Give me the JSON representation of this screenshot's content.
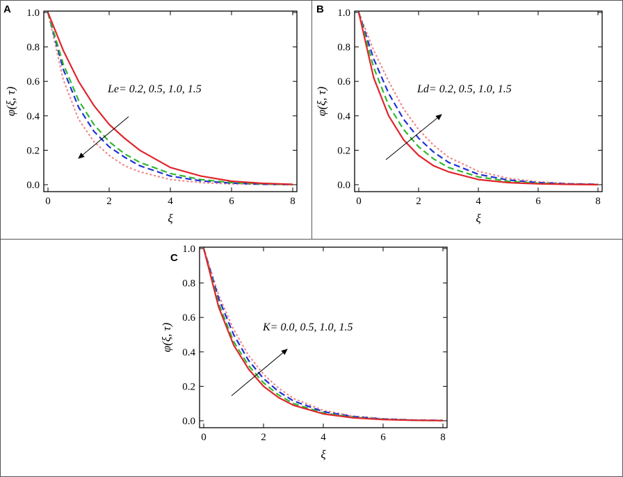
{
  "panels": [
    {
      "letter": "A"
    },
    {
      "letter": "B"
    },
    {
      "letter": "C"
    }
  ],
  "chart_data": [
    {
      "type": "line",
      "panel": "A",
      "xlabel": "ξ",
      "ylabel": "φ(ξ, τ)",
      "xlim": [
        0,
        8
      ],
      "ylim": [
        0,
        1
      ],
      "xticks": [
        "0",
        "2",
        "4",
        "6",
        "8"
      ],
      "yticks": [
        "0.0",
        "0.2",
        "0.4",
        "0.6",
        "0.8",
        "1.0"
      ],
      "annotation": "Le= 0.2, 0.5, 1.0, 1.5",
      "arrow_direction": "down-left",
      "series": [
        {
          "color": "#e0242b",
          "style": "solid",
          "x": [
            0,
            0.5,
            1,
            1.5,
            2,
            2.5,
            3,
            4,
            5,
            6,
            7,
            8
          ],
          "y": [
            1.0,
            0.78,
            0.6,
            0.46,
            0.35,
            0.27,
            0.2,
            0.1,
            0.05,
            0.02,
            0.008,
            0.002
          ]
        },
        {
          "color": "#2eb82e",
          "style": "dashed",
          "x": [
            0,
            0.5,
            1,
            1.5,
            2,
            2.5,
            3,
            4,
            5,
            6,
            7,
            8
          ],
          "y": [
            1.0,
            0.7,
            0.49,
            0.35,
            0.25,
            0.18,
            0.13,
            0.065,
            0.03,
            0.012,
            0.005,
            0.001
          ]
        },
        {
          "color": "#1f2fd6",
          "style": "dashed",
          "x": [
            0,
            0.5,
            1,
            1.5,
            2,
            2.5,
            3,
            4,
            5,
            6,
            7,
            8
          ],
          "y": [
            1.0,
            0.67,
            0.45,
            0.31,
            0.22,
            0.16,
            0.11,
            0.05,
            0.022,
            0.009,
            0.003,
            0.001
          ]
        },
        {
          "color": "#f08a8a",
          "style": "dotted",
          "x": [
            0,
            0.5,
            1,
            1.5,
            2,
            2.5,
            3,
            4,
            5,
            6,
            7,
            8
          ],
          "y": [
            1.0,
            0.61,
            0.38,
            0.25,
            0.17,
            0.11,
            0.075,
            0.03,
            0.012,
            0.005,
            0.002,
            0.0
          ]
        }
      ]
    },
    {
      "type": "line",
      "panel": "B",
      "xlabel": "ξ",
      "ylabel": "φ(ξ, τ)",
      "xlim": [
        0,
        8
      ],
      "ylim": [
        0,
        1
      ],
      "xticks": [
        "0",
        "2",
        "4",
        "6",
        "8"
      ],
      "yticks": [
        "0.0",
        "0.2",
        "0.4",
        "0.6",
        "0.8",
        "1.0"
      ],
      "annotation": "Ld= 0.2, 0.5, 1.0, 1.5",
      "arrow_direction": "up-right",
      "series": [
        {
          "color": "#e0242b",
          "style": "solid",
          "x": [
            0,
            0.5,
            1,
            1.5,
            2,
            2.5,
            3,
            4,
            5,
            6,
            7,
            8
          ],
          "y": [
            1.0,
            0.62,
            0.4,
            0.26,
            0.17,
            0.11,
            0.075,
            0.03,
            0.012,
            0.005,
            0.002,
            0.0
          ]
        },
        {
          "color": "#2eb82e",
          "style": "dashed",
          "x": [
            0,
            0.5,
            1,
            1.5,
            2,
            2.5,
            3,
            4,
            5,
            6,
            7,
            8
          ],
          "y": [
            1.0,
            0.68,
            0.46,
            0.32,
            0.22,
            0.15,
            0.1,
            0.045,
            0.02,
            0.008,
            0.003,
            0.001
          ]
        },
        {
          "color": "#1f2fd6",
          "style": "dashed",
          "x": [
            0,
            0.5,
            1,
            1.5,
            2,
            2.5,
            3,
            4,
            5,
            6,
            7,
            8
          ],
          "y": [
            1.0,
            0.73,
            0.53,
            0.38,
            0.27,
            0.19,
            0.13,
            0.06,
            0.027,
            0.012,
            0.005,
            0.002
          ]
        },
        {
          "color": "#f08a8a",
          "style": "dotted",
          "x": [
            0,
            0.5,
            1,
            1.5,
            2,
            2.5,
            3,
            4,
            5,
            6,
            7,
            8
          ],
          "y": [
            1.0,
            0.78,
            0.6,
            0.44,
            0.32,
            0.23,
            0.16,
            0.078,
            0.037,
            0.017,
            0.007,
            0.003
          ]
        }
      ]
    },
    {
      "type": "line",
      "panel": "C",
      "xlabel": "ξ",
      "ylabel": "φ(ξ, τ)",
      "xlim": [
        0,
        8
      ],
      "ylim": [
        0,
        1
      ],
      "xticks": [
        "0",
        "2",
        "4",
        "6",
        "8"
      ],
      "yticks": [
        "0.0",
        "0.2",
        "0.4",
        "0.6",
        "0.8",
        "1.0"
      ],
      "annotation": "K= 0.0, 0.5, 1.0, 1.5",
      "arrow_direction": "up-right",
      "series": [
        {
          "color": "#e0242b",
          "style": "solid",
          "x": [
            0,
            0.5,
            1,
            1.5,
            2,
            2.5,
            3,
            4,
            5,
            6,
            7,
            8
          ],
          "y": [
            1.0,
            0.66,
            0.44,
            0.3,
            0.2,
            0.135,
            0.09,
            0.04,
            0.017,
            0.007,
            0.003,
            0.001
          ]
        },
        {
          "color": "#2eb82e",
          "style": "dashed",
          "x": [
            0,
            0.5,
            1,
            1.5,
            2,
            2.5,
            3,
            4,
            5,
            6,
            7,
            8
          ],
          "y": [
            1.0,
            0.68,
            0.46,
            0.32,
            0.22,
            0.15,
            0.1,
            0.045,
            0.02,
            0.008,
            0.003,
            0.001
          ]
        },
        {
          "color": "#1f2fd6",
          "style": "dashed",
          "x": [
            0,
            0.5,
            1,
            1.5,
            2,
            2.5,
            3,
            4,
            5,
            6,
            7,
            8
          ],
          "y": [
            1.0,
            0.71,
            0.5,
            0.35,
            0.245,
            0.17,
            0.115,
            0.053,
            0.024,
            0.01,
            0.004,
            0.002
          ]
        },
        {
          "color": "#f08a8a",
          "style": "dotted",
          "x": [
            0,
            0.5,
            1,
            1.5,
            2,
            2.5,
            3,
            4,
            5,
            6,
            7,
            8
          ],
          "y": [
            1.0,
            0.73,
            0.53,
            0.38,
            0.27,
            0.19,
            0.13,
            0.06,
            0.027,
            0.012,
            0.005,
            0.002
          ]
        }
      ]
    }
  ]
}
